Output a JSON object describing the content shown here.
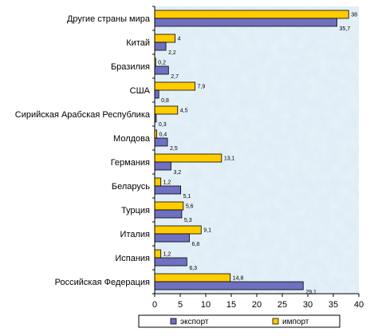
{
  "chart_data": {
    "type": "bar",
    "orientation": "horizontal",
    "categories": [
      "Другие страны мира",
      "Китай",
      "Бразилия",
      "США",
      "Сирийская Арабская Республика",
      "Молдова",
      "Германия",
      "Беларусь",
      "Турция",
      "Италия",
      "Испания",
      "Российская Федерация"
    ],
    "series": [
      {
        "name": "импорт",
        "color": "#FFCC00",
        "values": [
          38,
          4,
          0.2,
          7.9,
          4.5,
          0.4,
          13.1,
          1.2,
          5.6,
          9.1,
          1.2,
          14.8
        ],
        "labels": [
          "38",
          "4",
          "0,2",
          "7,9",
          "4,5",
          "0,4",
          "13,1",
          "1,2",
          "5,6",
          "9,1",
          "1,2",
          "14,8"
        ]
      },
      {
        "name": "экспорт",
        "color": "#7070C0",
        "values": [
          35.7,
          2.2,
          2.7,
          0.8,
          0.3,
          2.5,
          3.2,
          5.1,
          5.3,
          6.8,
          6.3,
          29.1
        ],
        "labels": [
          "35,7",
          "2,2",
          "2,7",
          "0,8",
          "0,3",
          "2,5",
          "3,2",
          "5,1",
          "5,3",
          "6,8",
          "6,3",
          "29,1"
        ]
      }
    ],
    "xlim": [
      0,
      40
    ],
    "xticks": [
      "0",
      "5",
      "10",
      "15",
      "20",
      "25",
      "30",
      "35",
      "40"
    ],
    "legend": {
      "placement": "bottom",
      "order": [
        "экспорт",
        "импорт"
      ]
    },
    "plot_background": "#DCEBF5"
  }
}
